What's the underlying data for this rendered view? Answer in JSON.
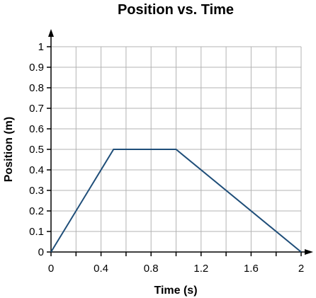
{
  "chart_data": {
    "type": "line",
    "title": "Position vs. Time",
    "xlabel": "Time (s)",
    "ylabel": "Position (m)",
    "xlim": [
      0,
      2
    ],
    "ylim": [
      0,
      1
    ],
    "grid": true,
    "x_ticks": [
      0,
      0.2,
      0.4,
      0.6,
      0.8,
      1.0,
      1.2,
      1.4,
      1.6,
      1.8,
      2.0
    ],
    "x_tick_labels": [
      "0",
      "",
      "0.4",
      "",
      "0.8",
      "",
      "1.2",
      "",
      "1.6",
      "",
      "2"
    ],
    "y_ticks": [
      0,
      0.1,
      0.2,
      0.3,
      0.4,
      0.5,
      0.6,
      0.7,
      0.8,
      0.9,
      1.0
    ],
    "y_tick_labels": [
      "0",
      "0.1",
      "0.2",
      "0.3",
      "0.4",
      "0.5",
      "0.6",
      "0.7",
      "0.8",
      "0.9",
      "1"
    ],
    "series": [
      {
        "x": [
          0,
          0.5,
          1.0,
          2.0
        ],
        "y": [
          0,
          0.5,
          0.5,
          0
        ],
        "color": "#1f4e79"
      }
    ]
  }
}
